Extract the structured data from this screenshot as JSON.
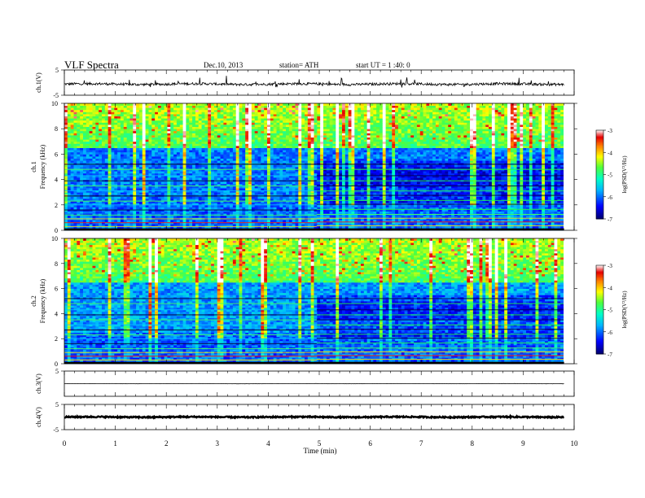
{
  "header": {
    "title": "VLF  Spectra",
    "date": "Dec.10, 2013",
    "station": "station= ATH",
    "start": "start  UT  =   1 :40: 0"
  },
  "chart_data": [
    {
      "id": "ch1-waveform",
      "type": "line",
      "ylabel": "ch.1(V)",
      "ylim": [
        -5,
        5
      ],
      "yticks": [
        "5",
        "-5"
      ],
      "xlim": [
        0,
        10
      ],
      "trace": {
        "level": -0.6,
        "noise_amplitude": 0.5,
        "spike_max": 2.2
      }
    },
    {
      "id": "ch1-spectrogram",
      "type": "heatmap",
      "ylabel": "ch.1\nFrequency  (kHz)",
      "ylabel_lines": [
        "ch.1",
        "Frequency  (kHz)"
      ],
      "ylim": [
        0,
        10
      ],
      "yticks": [
        "0",
        "2",
        "4",
        "6",
        "8",
        "10"
      ],
      "xlim": [
        0,
        9.8
      ],
      "colorbar": {
        "label": "log(PSD(V²/Hz)",
        "ticks": [
          "-3",
          "-4",
          "-5",
          "-6",
          "-7"
        ],
        "range": [
          -7,
          -3
        ]
      },
      "transition_min": 4.95
    },
    {
      "id": "ch2-spectrogram",
      "type": "heatmap",
      "ylabel": "ch.2\nFrequency  (kHz)",
      "ylabel_lines": [
        "ch.2",
        "Frequency  (kHz)"
      ],
      "ylim": [
        0,
        10
      ],
      "yticks": [
        "0",
        "2",
        "4",
        "6",
        "8",
        "10"
      ],
      "xlim": [
        0,
        9.8
      ],
      "colorbar": {
        "label": "log(PSD(V²/Hz)",
        "ticks": [
          "-3",
          "-4",
          "-5",
          "-6",
          "-7"
        ],
        "range": [
          -7,
          -3
        ]
      },
      "transition_min": 4.95
    },
    {
      "id": "ch3-waveform",
      "type": "line",
      "ylabel": "ch.3(V)",
      "ylim": [
        -5,
        5
      ],
      "yticks": [
        "5"
      ],
      "xlim": [
        0,
        10
      ],
      "trace": {
        "level": 0,
        "noise_amplitude": 0.05,
        "spike_max": 0
      }
    },
    {
      "id": "ch4-waveform",
      "type": "line",
      "ylabel": "ch.4(V)",
      "ylim": [
        -5,
        5
      ],
      "yticks": [
        "5",
        "-5"
      ],
      "xlim": [
        0,
        10
      ],
      "trace": {
        "level": 0,
        "noise_amplitude": 0.25,
        "spike_max": 0
      }
    }
  ],
  "x_axis": {
    "label": "Time  (min)",
    "ticks": [
      "0",
      "1",
      "2",
      "3",
      "4",
      "5",
      "6",
      "7",
      "8",
      "9",
      "10"
    ],
    "range": [
      0,
      10
    ]
  }
}
